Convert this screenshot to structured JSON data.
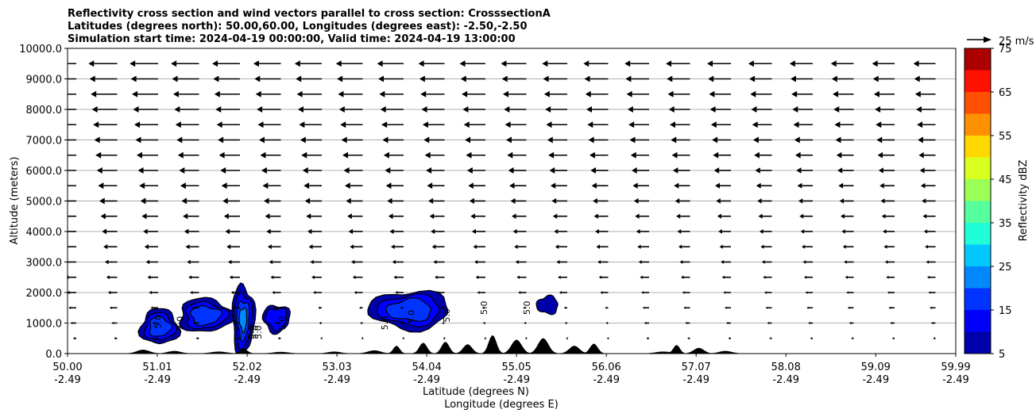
{
  "chart_data": {
    "type": "contourf",
    "title_lines": [
      "Reflectivity cross section and wind vectors parallel to cross section: CrosssectionA",
      "Latitudes (degrees north): 50.00,60.00, Longitudes (degrees east): -2.50,-2.50",
      "Simulation start time: 2024-04-19 00:00:00, Valid time: 2024-04-19 13:00:00"
    ],
    "xlabel_lines": [
      "Latitude (degrees N)",
      "Longitude (degrees E)"
    ],
    "ylabel": "Altitude (meters)",
    "x_range": [
      50.0,
      59.99
    ],
    "y_range": [
      0,
      10000
    ],
    "x_ticks": [
      {
        "lat": 50.0,
        "lat_label": "50.00",
        "lon_label": "-2.49"
      },
      {
        "lat": 51.01,
        "lat_label": "51.01",
        "lon_label": "-2.49"
      },
      {
        "lat": 52.02,
        "lat_label": "52.02",
        "lon_label": "-2.49"
      },
      {
        "lat": 53.03,
        "lat_label": "53.03",
        "lon_label": "-2.49"
      },
      {
        "lat": 54.04,
        "lat_label": "54.04",
        "lon_label": "-2.49"
      },
      {
        "lat": 55.05,
        "lat_label": "55.05",
        "lon_label": "-2.49"
      },
      {
        "lat": 56.06,
        "lat_label": "56.06",
        "lon_label": "-2.49"
      },
      {
        "lat": 57.07,
        "lat_label": "57.07",
        "lon_label": "-2.49"
      },
      {
        "lat": 58.08,
        "lat_label": "58.08",
        "lon_label": "-2.49"
      },
      {
        "lat": 59.09,
        "lat_label": "59.09",
        "lon_label": "-2.49"
      },
      {
        "lat": 59.99,
        "lat_label": "59.99",
        "lon_label": "-2.49"
      }
    ],
    "y_ticks": [
      {
        "value": 0,
        "label": "0.0"
      },
      {
        "value": 1000,
        "label": "1000.0"
      },
      {
        "value": 2000,
        "label": "2000.0"
      },
      {
        "value": 3000,
        "label": "3000.0"
      },
      {
        "value": 4000,
        "label": "4000.0"
      },
      {
        "value": 5000,
        "label": "5000.0"
      },
      {
        "value": 6000,
        "label": "6000.0"
      },
      {
        "value": 7000,
        "label": "7000.0"
      },
      {
        "value": 8000,
        "label": "8000.0"
      },
      {
        "value": 9000,
        "label": "9000.0"
      },
      {
        "value": 10000,
        "label": "10000.0"
      }
    ],
    "grid": "horizontal",
    "colorbar": {
      "label": "Reflectivity dBZ",
      "levels": [
        5,
        10,
        15,
        20,
        25,
        30,
        35,
        40,
        45,
        50,
        55,
        60,
        65,
        70,
        75
      ],
      "colors": [
        "#0000aa",
        "#0000ff",
        "#0033ff",
        "#0088ff",
        "#00c8ff",
        "#1effd8",
        "#55ff9c",
        "#9cff55",
        "#d8ff1e",
        "#ffd800",
        "#ff9000",
        "#ff5000",
        "#ff1000",
        "#aa0000"
      ],
      "tick_labels": [
        {
          "value": 5,
          "label": "5"
        },
        {
          "value": 15,
          "label": "15"
        },
        {
          "value": 25,
          "label": "25"
        },
        {
          "value": 35,
          "label": "35"
        },
        {
          "value": 45,
          "label": "45"
        },
        {
          "value": 55,
          "label": "55"
        },
        {
          "value": 65,
          "label": "65"
        },
        {
          "value": 75,
          "label": "75"
        }
      ]
    },
    "wind_key": {
      "label": "25 m/s",
      "speed": 25
    },
    "reflectivity_cells": [
      {
        "lat_min": 50.82,
        "lat_max": 51.25,
        "alt_min": 300,
        "alt_max": 1450,
        "dbz_max": 18
      },
      {
        "lat_min": 51.25,
        "lat_max": 51.85,
        "alt_min": 700,
        "alt_max": 1800,
        "dbz_max": 16
      },
      {
        "lat_min": 51.85,
        "lat_max": 52.1,
        "alt_min": 0,
        "alt_max": 2250,
        "dbz_max": 26
      },
      {
        "lat_min": 52.2,
        "lat_max": 52.5,
        "alt_min": 700,
        "alt_max": 1600,
        "dbz_max": 14
      },
      {
        "lat_min": 53.4,
        "lat_max": 54.3,
        "alt_min": 800,
        "alt_max": 2050,
        "dbz_max": 16
      },
      {
        "lat_min": 55.28,
        "lat_max": 55.52,
        "alt_min": 1300,
        "alt_max": 1880,
        "dbz_max": 10
      }
    ],
    "contour_labels": [
      {
        "lat": 51.05,
        "alt": 1050,
        "label": "5.0"
      },
      {
        "lat": 51.3,
        "alt": 1000,
        "label": "5.0"
      },
      {
        "lat": 52.1,
        "alt": 700,
        "label": "5.0"
      },
      {
        "lat": 52.14,
        "alt": 700,
        "label": "5.0"
      },
      {
        "lat": 52.18,
        "alt": 700,
        "label": "5.0"
      },
      {
        "lat": 52.45,
        "alt": 1000,
        "label": "5.0"
      },
      {
        "lat": 53.6,
        "alt": 1000,
        "label": "5.0"
      },
      {
        "lat": 53.9,
        "alt": 1200,
        "label": "5.0"
      },
      {
        "lat": 54.3,
        "alt": 1250,
        "label": "5.0"
      },
      {
        "lat": 54.72,
        "alt": 1500,
        "label": "5.0"
      },
      {
        "lat": 55.2,
        "alt": 1500,
        "label": "5.0"
      }
    ],
    "terrain_bumps": [
      {
        "lat": 50.85,
        "height": 120,
        "width": 0.1
      },
      {
        "lat": 51.2,
        "height": 80,
        "width": 0.1
      },
      {
        "lat": 51.7,
        "height": 60,
        "width": 0.12
      },
      {
        "lat": 51.98,
        "height": 150,
        "width": 0.06
      },
      {
        "lat": 52.4,
        "height": 50,
        "width": 0.12
      },
      {
        "lat": 53.0,
        "height": 60,
        "width": 0.1
      },
      {
        "lat": 53.45,
        "height": 100,
        "width": 0.1
      },
      {
        "lat": 53.7,
        "height": 250,
        "width": 0.05
      },
      {
        "lat": 54.0,
        "height": 350,
        "width": 0.06
      },
      {
        "lat": 54.25,
        "height": 380,
        "width": 0.06
      },
      {
        "lat": 54.5,
        "height": 300,
        "width": 0.07
      },
      {
        "lat": 54.78,
        "height": 600,
        "width": 0.06
      },
      {
        "lat": 55.05,
        "height": 450,
        "width": 0.08
      },
      {
        "lat": 55.35,
        "height": 500,
        "width": 0.08
      },
      {
        "lat": 55.7,
        "height": 250,
        "width": 0.08
      },
      {
        "lat": 55.92,
        "height": 320,
        "width": 0.06
      },
      {
        "lat": 56.7,
        "height": 60,
        "width": 0.12
      },
      {
        "lat": 56.85,
        "height": 280,
        "width": 0.05
      },
      {
        "lat": 57.1,
        "height": 180,
        "width": 0.08
      },
      {
        "lat": 57.4,
        "height": 80,
        "width": 0.1
      }
    ]
  }
}
